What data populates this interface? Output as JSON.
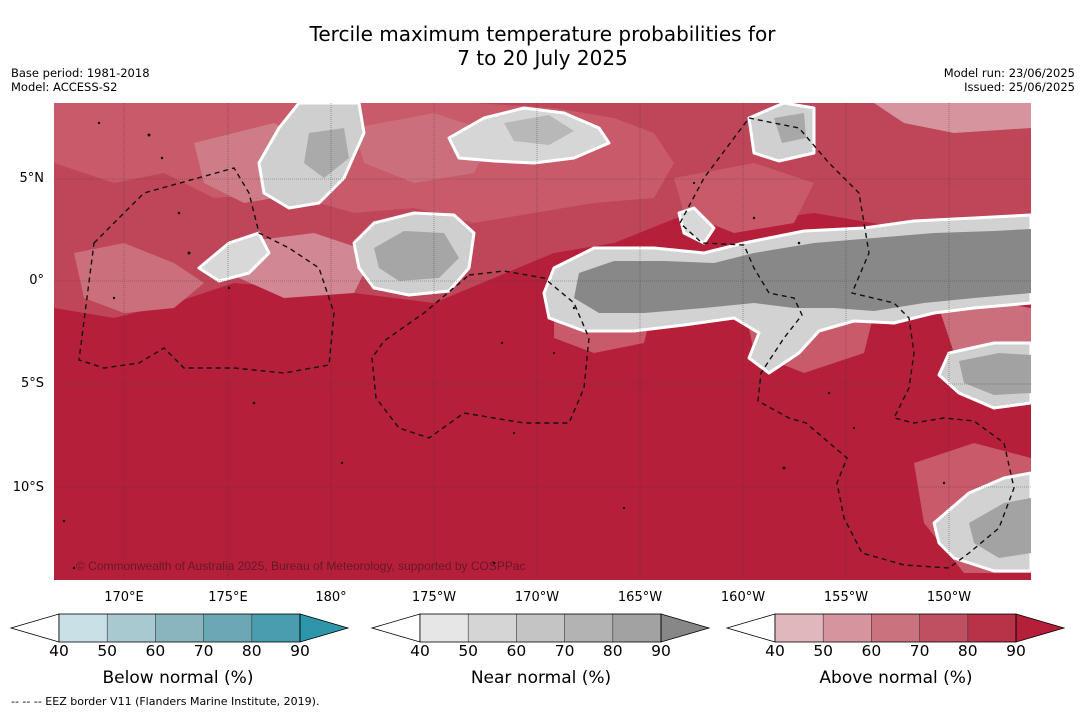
{
  "header": {
    "title_line1": "Tercile maximum temperature probabilities for",
    "title_line2": "7 to 20 July 2025",
    "base_period": "Base period: 1981-2018",
    "model": "Model: ACCESS-S2",
    "model_run": "Model run: 23/06/2025",
    "issued": "Issued: 25/06/2025"
  },
  "map": {
    "lat_labels": [
      "5°N",
      "0°",
      "5°S",
      "10°S"
    ],
    "lon_labels": [
      "170°E",
      "175°E",
      "180°",
      "175°W",
      "170°W",
      "165°W",
      "160°W",
      "155°W",
      "150°W"
    ],
    "copyright": "© Commonwealth of Australia 2025, Bureau of Meteorology, supported by COSPPac",
    "colors": {
      "above_full": "#b51f3a",
      "near_dark": "#878787",
      "near_light": "#d9d9d9"
    }
  },
  "colorbars": {
    "below": {
      "title": "Below normal (%)",
      "ticks": [
        "40",
        "50",
        "60",
        "70",
        "80",
        "90"
      ],
      "colors": [
        "#ffffff",
        "#c9e1e6",
        "#a8c9cf",
        "#89b5bf",
        "#6aa8b6",
        "#4a9daf",
        "#2e95ab"
      ]
    },
    "near": {
      "title": "Near normal (%)",
      "ticks": [
        "40",
        "50",
        "60",
        "70",
        "80",
        "90"
      ],
      "colors": [
        "#ffffff",
        "#e6e6e6",
        "#d5d5d5",
        "#c4c4c4",
        "#b3b3b3",
        "#a2a2a2",
        "#878787"
      ]
    },
    "above": {
      "title": "Above normal (%)",
      "ticks": [
        "40",
        "50",
        "60",
        "70",
        "80",
        "90"
      ],
      "colors": [
        "#ffffff",
        "#e0b7bd",
        "#d6959e",
        "#cb727f",
        "#bf5062",
        "#b93348",
        "#b51f3a"
      ]
    }
  },
  "footer": {
    "eez_note": "--  --  -- EEZ border V11 (Flanders Marine Institute, 2019)."
  }
}
